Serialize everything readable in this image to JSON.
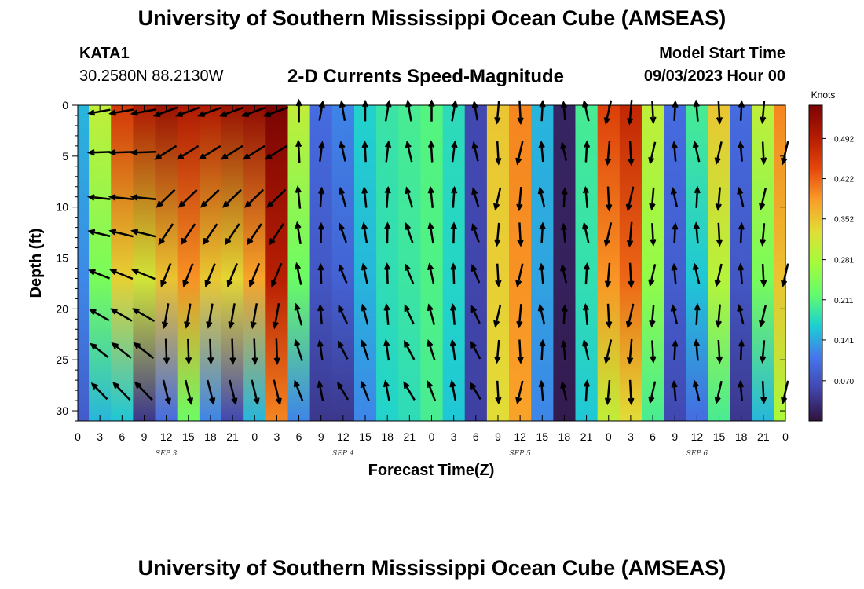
{
  "header": {
    "title": "University of Southern Mississippi Ocean Cube (AMSEAS)",
    "station": "KATA1",
    "coords": "30.2580N  88.2130W",
    "subtitle": "2-D Currents Speed-Magnitude",
    "model_start_label": "Model Start Time",
    "model_start_value": "09/03/2023 Hour 00"
  },
  "footer": {
    "title": "University of Southern Mississippi Ocean Cube (AMSEAS)"
  },
  "chart_data": {
    "type": "heatmap",
    "xlabel": "Forecast Time(Z)",
    "ylabel": "Depth (ft)",
    "x_tick_labels": [
      "0",
      "3",
      "6",
      "9",
      "12",
      "15",
      "18",
      "21",
      "0",
      "3",
      "6",
      "9",
      "12",
      "15",
      "18",
      "21",
      "0",
      "3",
      "6",
      "9",
      "12",
      "15",
      "18",
      "21",
      "0",
      "3",
      "6",
      "9",
      "12",
      "15",
      "18",
      "21",
      "0"
    ],
    "date_labels": [
      {
        "label": "SEP 3",
        "hour": 12
      },
      {
        "label": "SEP 4",
        "hour": 36
      },
      {
        "label": "SEP 5",
        "hour": 60
      },
      {
        "label": "SEP 6",
        "hour": 84
      }
    ],
    "x_range_hours": [
      0,
      96
    ],
    "ylim": [
      0,
      31
    ],
    "y_ticks": [
      0,
      5,
      10,
      15,
      20,
      25,
      30
    ],
    "colorbar": {
      "label": "Knots",
      "range": [
        0,
        0.55
      ],
      "ticks": [
        "0.070",
        "0.141",
        "0.211",
        "0.281",
        "0.352",
        "0.422",
        "0.492"
      ]
    },
    "column_speed_profile_knots": {
      "hours": [
        0,
        3,
        6,
        9,
        12,
        15,
        18,
        21,
        24,
        27,
        30,
        33,
        36,
        39,
        42,
        45,
        48,
        51,
        54,
        57,
        60,
        63,
        66,
        69,
        72,
        75,
        78,
        81,
        84,
        87,
        90,
        93,
        96
      ],
      "surface": [
        0.15,
        0.3,
        0.46,
        0.5,
        0.52,
        0.5,
        0.5,
        0.52,
        0.53,
        0.55,
        0.3,
        0.1,
        0.12,
        0.17,
        0.19,
        0.2,
        0.21,
        0.18,
        0.06,
        0.35,
        0.4,
        0.15,
        0.02,
        0.2,
        0.45,
        0.48,
        0.3,
        0.1,
        0.2,
        0.35,
        0.1,
        0.3,
        0.4
      ],
      "bottom": [
        0.08,
        0.15,
        0.16,
        0.04,
        0.1,
        0.23,
        0.12,
        0.06,
        0.15,
        0.4,
        0.12,
        0.04,
        0.04,
        0.12,
        0.17,
        0.18,
        0.2,
        0.16,
        0.05,
        0.33,
        0.38,
        0.12,
        0.01,
        0.16,
        0.3,
        0.33,
        0.2,
        0.06,
        0.1,
        0.2,
        0.04,
        0.15,
        0.28
      ]
    },
    "vectors": {
      "depths_ft": [
        0,
        4,
        8.5,
        12,
        16,
        20,
        23.5,
        27.5
      ],
      "note_direction": "arrows show current direction; surface/upper flow mostly westward early, northward mid-period, southward at peaks"
    }
  }
}
